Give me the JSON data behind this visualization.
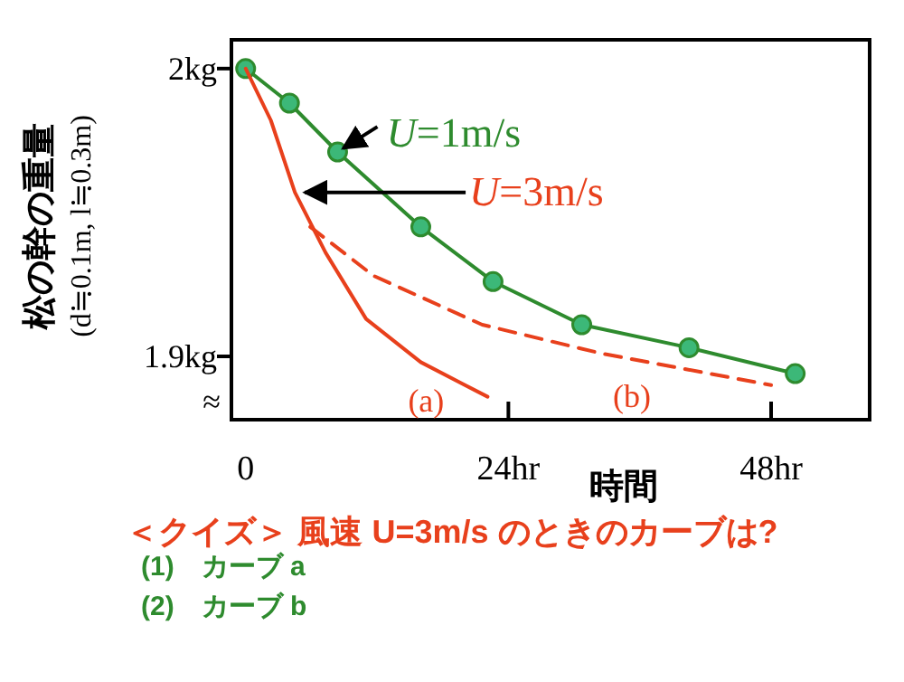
{
  "chart_data": {
    "type": "line",
    "title": "＜クイズ＞ 風速 U=3m/s のときのカーブは?",
    "xlabel": "時間",
    "ylabel": "松の幹の重量\n(d≒0.1m, l≒0.3m)",
    "xlim": [
      -1.3,
      57
    ],
    "xticks": [
      0,
      {
        "value": 24,
        "label": "24hr"
      },
      {
        "value": 48,
        "label": "48hr"
      }
    ],
    "ylim": [
      1.878,
      2.01
    ],
    "yticks": [
      {
        "value": 1.9,
        "label": "1.9kg"
      },
      {
        "value": 2,
        "label": "2kg"
      }
    ],
    "grid": false,
    "series": [
      {
        "name": "U=1m/s",
        "color": "#2e8b2e",
        "marker": "circle",
        "line_style": "solid",
        "x": [
          0,
          4.0,
          8.4,
          16,
          22.6,
          30.7,
          40.5,
          50.2
        ],
        "values": [
          2.0,
          1.988,
          1.971,
          1.945,
          1.926,
          1.911,
          1.903,
          1.894
        ]
      },
      {
        "name": "(a)",
        "color": "#e8401c",
        "marker": "none",
        "line_style": "solid",
        "x": [
          0,
          2.3,
          4.5,
          7.3,
          11,
          16,
          22.1
        ],
        "values": [
          2.0,
          1.982,
          1.957,
          1.936,
          1.913,
          1.898,
          1.886
        ]
      },
      {
        "name": "(b)",
        "color": "#e8401c",
        "marker": "none",
        "line_style": "dashed",
        "x": [
          5.9,
          11.7,
          21.6,
          32.5,
          48
        ],
        "values": [
          1.945,
          1.928,
          1.911,
          1.901,
          1.89
        ]
      }
    ],
    "annotations": [
      {
        "text": "U=3m/s",
        "x": 4.9,
        "y": 1.957
      },
      "≈",
      "(1)　カーブ a",
      "(2)　カーブ b"
    ]
  }
}
